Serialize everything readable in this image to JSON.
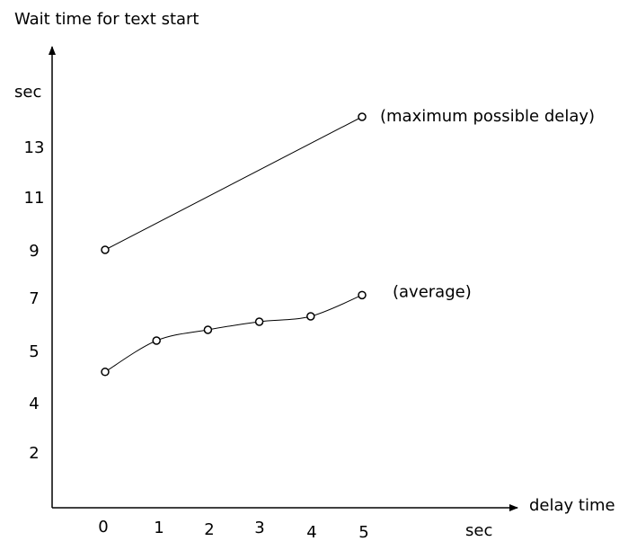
{
  "chart_data": {
    "type": "line",
    "title": "Wait time for text start",
    "xlabel": "delay time",
    "x_unit": "sec",
    "ylabel": "sec",
    "x_ticks": [
      "0",
      "1",
      "2",
      "3",
      "4",
      "5"
    ],
    "y_ticks": [
      "2",
      "4",
      "5",
      "7",
      "9",
      "11",
      "13"
    ],
    "grid": false,
    "legend": "none",
    "series": [
      {
        "name": "(maximum possible delay)",
        "x": [
          0,
          5
        ],
        "y": [
          9,
          14
        ],
        "curve": "straight"
      },
      {
        "name": "(average)",
        "x": [
          0,
          1,
          2,
          3,
          4,
          5
        ],
        "y": [
          4.6,
          5.4,
          5.8,
          6.1,
          6.3,
          7.1
        ],
        "curve": "smooth"
      }
    ]
  }
}
